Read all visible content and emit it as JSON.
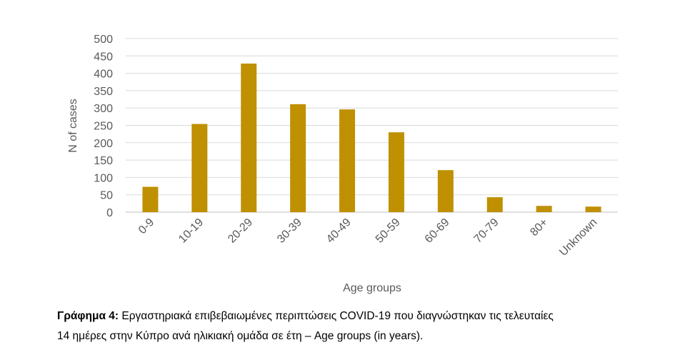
{
  "chart_data": {
    "type": "bar",
    "categories": [
      "0-9",
      "10-19",
      "20-29",
      "30-39",
      "40-49",
      "50-59",
      "60-69",
      "70-79",
      "80+",
      "Unknown"
    ],
    "values": [
      73,
      254,
      428,
      311,
      296,
      230,
      121,
      43,
      18,
      16
    ],
    "xlabel": "Age groups",
    "ylabel": "N of cases",
    "ylim": [
      0,
      500
    ],
    "yticks": [
      0,
      50,
      100,
      150,
      200,
      250,
      300,
      350,
      400,
      450,
      500
    ],
    "grid": true,
    "legend": "none",
    "bar_color": "#bf9000"
  },
  "caption": {
    "label": "Γράφημα 4:",
    "line1": "Εργαστηριακά επιβεβαιωμένες περιπτώσεις COVID-19 που διαγνώστηκαν τις τελευταίες",
    "line2": "14 ημέρες στην Κύπρο ανά ηλικιακή ομάδα σε έτη – Age groups (in years)."
  }
}
